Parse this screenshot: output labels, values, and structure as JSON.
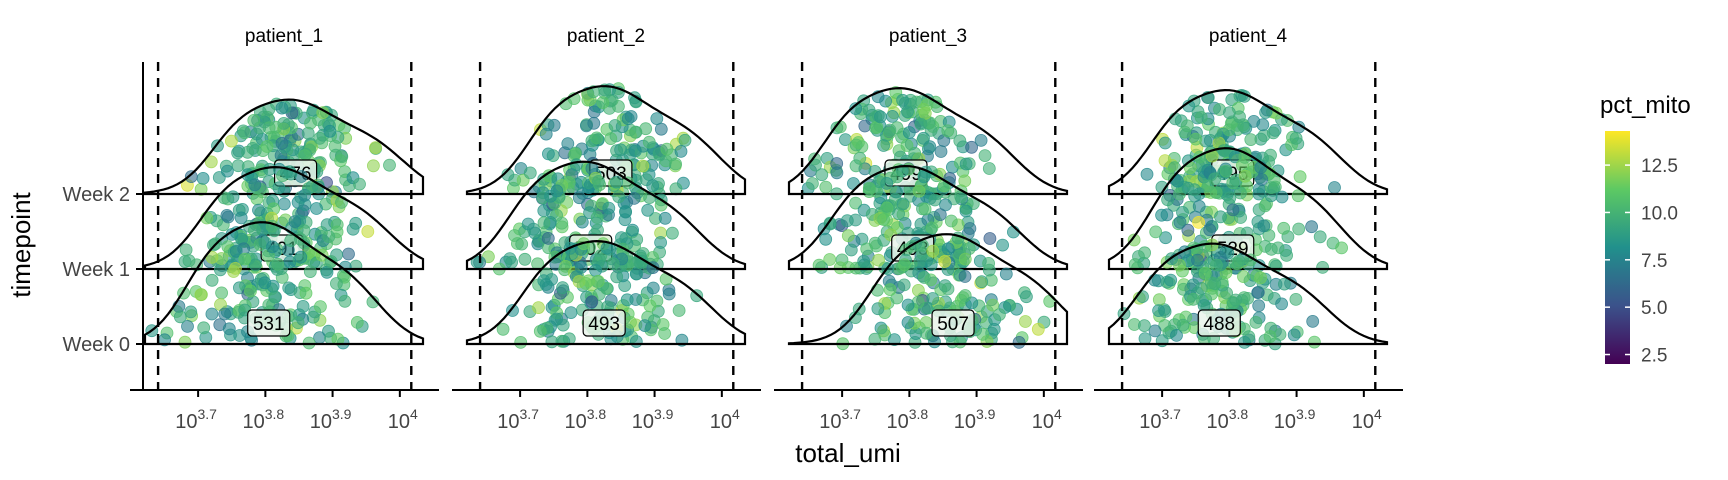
{
  "chart_data": {
    "type": "ridgeline",
    "xlabel": "total_umi",
    "ylabel": "timepoint",
    "x_scale": "log10",
    "x_tick_exponents": [
      "3.7",
      "3.8",
      "3.9"
    ],
    "x_tick_plain": "10",
    "x_tick_base": "10",
    "x_tick_values": [
      5012,
      6310,
      7943,
      10000
    ],
    "xlim": [
      4150,
      10900
    ],
    "y_categories": [
      "Week 0",
      "Week 1",
      "Week 2"
    ],
    "vlines": [
      4370,
      10400
    ],
    "legend": {
      "title": "pct_mito",
      "ticks": [
        "2.5",
        "5.0",
        "7.5",
        "10.0",
        "12.5"
      ],
      "tick_values": [
        2.5,
        5.0,
        7.5,
        10.0,
        12.5
      ],
      "range": [
        2,
        14.3
      ],
      "colors": [
        "#440154",
        "#3b528b",
        "#21908c",
        "#5dc963",
        "#fde725"
      ]
    },
    "panels": [
      {
        "title": "patient_1",
        "counts": [
          {
            "timepoint": "Week 0",
            "label": "531",
            "peak_log": 3.8
          },
          {
            "timepoint": "Week 1",
            "label": "491",
            "peak_log": 3.82
          },
          {
            "timepoint": "Week 2",
            "label": "476",
            "peak_log": 3.84
          }
        ]
      },
      {
        "title": "patient_2",
        "counts": [
          {
            "timepoint": "Week 0",
            "label": "493",
            "peak_log": 3.82
          },
          {
            "timepoint": "Week 1",
            "label": "502",
            "peak_log": 3.8
          },
          {
            "timepoint": "Week 2",
            "label": "503",
            "peak_log": 3.83
          }
        ]
      },
      {
        "title": "patient_3",
        "counts": [
          {
            "timepoint": "Week 0",
            "label": "507",
            "peak_log": 3.86
          },
          {
            "timepoint": "Week 1",
            "label": "493",
            "peak_log": 3.8
          },
          {
            "timepoint": "Week 2",
            "label": "499",
            "peak_log": 3.79
          }
        ]
      },
      {
        "title": "patient_4",
        "counts": [
          {
            "timepoint": "Week 0",
            "label": "488",
            "peak_log": 3.78
          },
          {
            "timepoint": "Week 1",
            "label": "529",
            "peak_log": 3.8
          },
          {
            "timepoint": "Week 2",
            "label": "495",
            "peak_log": 3.8
          }
        ]
      }
    ]
  }
}
